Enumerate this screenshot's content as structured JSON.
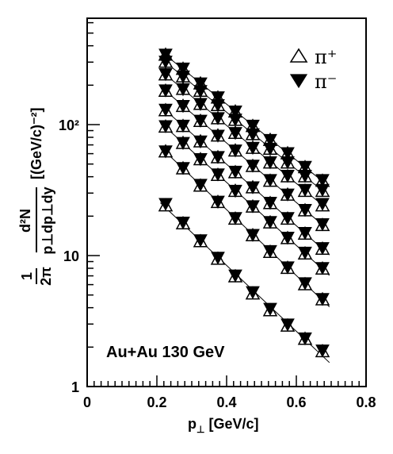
{
  "chart_data": {
    "type": "scatter",
    "xlabel": {
      "main": "p",
      "sub": "⊥",
      "unit": " [GeV/c]"
    },
    "ylabel": {
      "frac_num": "d²N",
      "frac_den": "2πp⊥dp⊥dy",
      "prefix": "1",
      "unit": "[(GeV/c)⁻²]"
    },
    "xlim": [
      0,
      0.8
    ],
    "ylim": [
      1,
      600
    ],
    "yscale": "log",
    "xticks": [
      0,
      0.2,
      0.4,
      0.6,
      0.8
    ],
    "xtick_labels": [
      "0",
      "0.2",
      "0.4",
      "0.6",
      "0.8"
    ],
    "ytick_labels": [
      "1",
      "10",
      "10²"
    ],
    "legend_position": "top-right",
    "annotation": "Au+Au 130 GeV",
    "x": [
      0.225,
      0.275,
      0.325,
      0.375,
      0.425,
      0.475,
      0.525,
      0.575,
      0.625,
      0.675
    ],
    "series": [
      {
        "name": "π⁺",
        "marker": "open-triangle-up",
        "curves": [
          [
            340,
            265,
            205,
            160,
            125,
            97,
            76,
            60,
            47,
            37
          ],
          [
            300,
            232,
            180,
            140,
            108,
            84,
            65,
            51,
            40,
            31
          ],
          [
            240,
            186,
            143,
            111,
            86,
            66,
            51,
            40,
            31,
            24
          ],
          [
            180,
            138,
            106,
            82,
            63,
            48,
            37,
            29,
            22,
            17
          ],
          [
            128,
            97,
            74,
            56,
            43,
            33,
            25,
            19,
            14.6,
            11.2
          ],
          [
            96,
            72,
            54,
            41,
            31,
            23.5,
            17.8,
            13.5,
            10.3,
            7.9
          ],
          [
            62,
            46,
            34,
            25.5,
            19,
            14.2,
            10.6,
            8.0,
            6.0,
            4.6
          ],
          [
            24,
            17.5,
            12.8,
            9.4,
            6.9,
            5.1,
            3.8,
            2.9,
            2.3,
            1.85
          ]
        ]
      },
      {
        "name": "π⁻",
        "marker": "filled-triangle-down",
        "curves": [
          [
            345,
            270,
            208,
            163,
            127,
            99,
            77,
            61,
            48,
            38
          ],
          [
            305,
            235,
            182,
            142,
            110,
            85,
            66,
            52,
            41,
            32
          ],
          [
            245,
            188,
            145,
            113,
            87,
            67,
            52,
            41,
            32,
            25
          ],
          [
            184,
            140,
            108,
            83,
            64,
            49,
            38,
            29.5,
            22.5,
            17.5
          ],
          [
            131,
            99,
            75,
            57,
            44,
            33.5,
            25.5,
            19.5,
            15,
            11.5
          ],
          [
            98,
            73,
            55,
            42,
            31.5,
            24,
            18.2,
            13.8,
            10.6,
            8.1
          ],
          [
            63,
            47,
            35,
            26,
            19.5,
            14.5,
            10.9,
            8.2,
            6.2,
            4.7
          ],
          [
            25,
            18,
            13.2,
            9.7,
            7.1,
            5.3,
            3.95,
            3.0,
            2.35,
            1.9
          ]
        ]
      }
    ]
  }
}
